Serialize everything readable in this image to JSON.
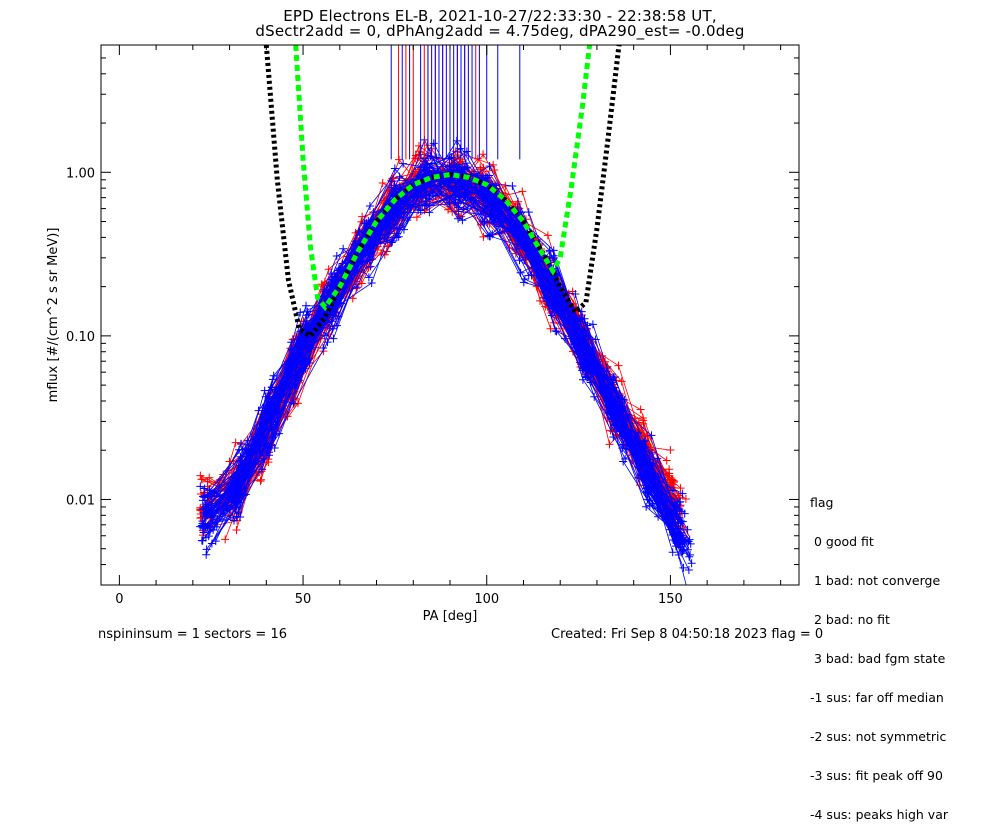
{
  "title_line1": "EPD Electrons EL-B, 2021-10-27/22:33:30 - 22:38:58 UT,",
  "title_line2": "dSectr2add = 0, dPhAng2add = 4.75deg, dPA290_est=  -0.0deg",
  "footer": {
    "left": "nspininsum =  1  sectors = 16",
    "right": "Created: Fri Sep  8 04:50:18 2023   flag = 0"
  },
  "legend": {
    "title": "flag",
    "items": [
      " 0 good fit",
      " 1 bad: not converge",
      " 2 bad: no fit",
      " 3 bad: bad fgm state",
      "-1 sus: far off median",
      "-2 sus: not symmetric",
      "-3 sus: fit peak off 90",
      "-4 sus: peaks high var"
    ]
  },
  "colors": {
    "red_series": "#ff0000",
    "blue_series": "#0000ff",
    "fit_black": "#000000",
    "fit_green": "#00ff00"
  },
  "chart_data": {
    "type": "line",
    "xlabel": "PA [deg]",
    "ylabel": "mflux [#/(cm^2 s sr MeV)]",
    "xlim": [
      -5,
      185
    ],
    "ylim": [
      0.003,
      6.0
    ],
    "yscale": "log",
    "x_ticks": [
      0,
      50,
      100,
      150
    ],
    "x_tick_labels": [
      "0",
      "50",
      "100",
      "150"
    ],
    "y_ticks": [
      0.01,
      0.1,
      1.0
    ],
    "y_tick_labels": [
      "0.01",
      "0.10",
      "1.00"
    ],
    "series": [
      {
        "color": "#ff0000",
        "style": "solid line with + markers (many overlapping spectra)",
        "x": [
          30,
          38,
          45,
          52,
          60,
          68,
          75,
          82,
          88,
          95,
          102,
          110,
          118,
          125,
          132,
          140,
          148,
          155
        ],
        "y": [
          0.01,
          0.02,
          0.05,
          0.1,
          0.2,
          0.4,
          0.65,
          0.85,
          0.92,
          0.85,
          0.65,
          0.4,
          0.2,
          0.1,
          0.05,
          0.025,
          0.012,
          0.006
        ]
      },
      {
        "color": "#0000ff",
        "style": "solid line with + markers (many overlapping spectra)",
        "x": [
          28,
          36,
          44,
          52,
          60,
          68,
          75,
          82,
          88,
          95,
          102,
          110,
          118,
          125,
          132,
          140,
          148,
          155
        ],
        "y": [
          0.008,
          0.018,
          0.045,
          0.1,
          0.2,
          0.4,
          0.65,
          0.85,
          0.95,
          0.85,
          0.65,
          0.4,
          0.2,
          0.1,
          0.05,
          0.02,
          0.01,
          0.005
        ]
      },
      {
        "color": "#000000",
        "style": "dotted thick fit curve",
        "x": [
          40,
          43,
          46,
          49,
          52,
          56,
          60,
          65,
          70,
          75,
          80,
          85,
          90,
          95,
          100,
          105,
          110,
          115,
          120,
          124,
          127,
          130,
          133,
          136
        ],
        "y": [
          6.0,
          0.9,
          0.22,
          0.11,
          0.1,
          0.13,
          0.2,
          0.33,
          0.5,
          0.68,
          0.84,
          0.93,
          0.97,
          0.93,
          0.84,
          0.68,
          0.5,
          0.33,
          0.2,
          0.14,
          0.16,
          0.45,
          1.6,
          6.0
        ]
      },
      {
        "color": "#00ff00",
        "style": "dashed thick fit curve",
        "x": [
          48,
          50,
          52,
          54,
          56,
          60,
          65,
          70,
          75,
          80,
          85,
          90,
          95,
          100,
          105,
          110,
          114,
          118,
          120,
          123,
          126,
          128
        ],
        "y": [
          6.0,
          1.2,
          0.35,
          0.17,
          0.15,
          0.2,
          0.33,
          0.5,
          0.68,
          0.84,
          0.93,
          0.97,
          0.93,
          0.84,
          0.68,
          0.5,
          0.35,
          0.25,
          0.3,
          0.8,
          2.5,
          6.0
        ]
      }
    ],
    "upper_ticks": {
      "description": "vertical lines at top of plot from y≈1.2 to top",
      "red_x": [
        76,
        78,
        80,
        83,
        84,
        86,
        88,
        90,
        92,
        94,
        97
      ],
      "blue_x": [
        74,
        77,
        79,
        82,
        84,
        85,
        86,
        87,
        88,
        89,
        90,
        91,
        92,
        93,
        94,
        95,
        96,
        98,
        100,
        103,
        109
      ]
    }
  }
}
